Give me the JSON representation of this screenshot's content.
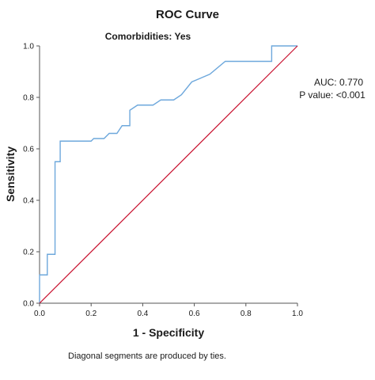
{
  "chart_data": {
    "type": "line",
    "title": "ROC Curve",
    "subtitle": "Comorbidities: Yes",
    "xlabel": "1 - Specificity",
    "ylabel": "Sensitivity",
    "xlim": [
      0,
      1
    ],
    "ylim": [
      0,
      1
    ],
    "x_ticks": [
      "0.0",
      "0.2",
      "0.4",
      "0.6",
      "0.8",
      "1.0"
    ],
    "y_ticks": [
      "0.0",
      "0.2",
      "0.4",
      "0.6",
      "0.8",
      "1.0"
    ],
    "grid": false,
    "annotations": [
      "AUC: 0.770",
      "P value: <0.001"
    ],
    "footnote": "Diagonal segments are produced by ties.",
    "colors": {
      "roc_curve": "#6ea8dc",
      "reference_line": "#c8102e",
      "axis": "#555555"
    },
    "series": [
      {
        "role": "roc-curve",
        "x": [
          0,
          0,
          0.03,
          0.03,
          0.06,
          0.06,
          0.08,
          0.08,
          0.2,
          0.21,
          0.25,
          0.27,
          0.3,
          0.32,
          0.32,
          0.35,
          0.35,
          0.38,
          0.44,
          0.47,
          0.52,
          0.55,
          0.59,
          0.66,
          0.72,
          0.9,
          0.9,
          1.0
        ],
        "y": [
          0,
          0.11,
          0.11,
          0.19,
          0.19,
          0.55,
          0.55,
          0.63,
          0.63,
          0.64,
          0.64,
          0.66,
          0.66,
          0.69,
          0.69,
          0.69,
          0.75,
          0.77,
          0.77,
          0.79,
          0.79,
          0.81,
          0.86,
          0.89,
          0.94,
          0.94,
          1.0,
          1.0
        ]
      },
      {
        "role": "reference-line",
        "x": [
          0,
          1
        ],
        "y": [
          0,
          1
        ]
      }
    ]
  }
}
